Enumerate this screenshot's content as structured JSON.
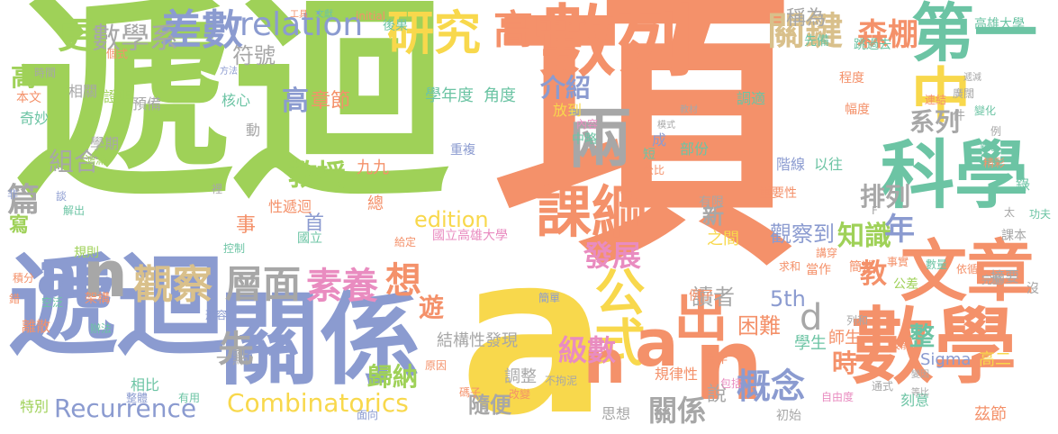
{
  "palette": {
    "orange": "#f4916a",
    "green": "#9fd158",
    "yellow": "#f8d84c",
    "blue": "#8b9bd0",
    "gray": "#a7a7a7",
    "teal": "#6cc4a4",
    "pink": "#e98cc0",
    "tan": "#d9c08b"
  },
  "words": {
    "xiang": "項",
    "dihui1": "遞迴",
    "dihui2": "遞迴",
    "a1": "a",
    "shuxue": "數學",
    "guanxi1": "關係",
    "shulie": "數列",
    "kexue": "科學",
    "wenzhang": "文章",
    "diyi": "第一",
    "liang": "兩",
    "kegang": "課綱",
    "zhong": "中",
    "yanjiu": "研究",
    "gaozhong": "高中",
    "chashu": "差數",
    "relation": "relation",
    "guanjian": "關鍵",
    "senpeng": "森棚",
    "chengwei": "稱為",
    "geng": "更",
    "shuxuexi": "數學系",
    "fuhao": "符號",
    "gongshi": "公式",
    "n1": "n",
    "n2": "n",
    "n3": "n",
    "a2": "a",
    "a3": "a",
    "chu": "出",
    "shijian": "事",
    "guancha": "觀察",
    "cengmian": "層面",
    "suyang": "素養",
    "xiang2": "想",
    "pailie": "排列",
    "zhishi": "知識",
    "xilie": "系列",
    "jiao": "教",
    "nian": "年",
    "xin": "新",
    "xian": "先",
    "gaoyi": "高一",
    "jieshao": "介紹",
    "jiaoshou": "教授",
    "zuhe": "組合",
    "pian": "篇",
    "xie": "寫",
    "shou": "首",
    "jiujiu": "九九",
    "gao": "高",
    "zhangjie": "章節",
    "yudu": "角度",
    "xuenian": "學年度",
    "fazhan": "發展",
    "guanchadao": "觀察到",
    "jieshu": "級數",
    "gainian": "概念",
    "guinan": "歸納",
    "suibian": "隨便",
    "combinatorics": "Combinatorics",
    "recurrence": "Recurrence",
    "edition": "edition",
    "guoligaoxiong": "國立高雄大學",
    "youxiang": "遊",
    "duzhe": "讀者",
    "fifth": "5th",
    "kunnan": "困難",
    "d1": "d",
    "shi": "時",
    "shuo": "說",
    "guanxi2": "關係",
    "jiegou": "結構性發現",
    "tiaozheng": "調整",
    "xuesheng": "學生",
    "shisheng": "師生",
    "zheng": "整",
    "sigma": "Sigma",
    "gaoer": "高二",
    "yidian": "一點",
    "xiangbi": "相比",
    "teibie": "特別",
    "zhengti": "整體",
    "youyong": "有用",
    "mianxiang": "面向",
    "sixiang": "思想",
    "chushi": "初始",
    "zidan": "自由度",
    "kedi": "刻意",
    "zijie": "茲節",
    "gaoxiongdaxue": "高雄大學",
    "xianbei": "先備",
    "tiaoguoqu": "跳過去",
    "zhishiyishi": "系列",
    "chengdu": "程度",
    "guanggao": "廣闊",
    "fudu": "幅度",
    "tiaoshi": "調適",
    "jieduan": "階線",
    "yiwang": "以往",
    "zhongyaoxing": "重要性",
    "zhijian": "之間",
    "youxian": "有限",
    "bufen": "部份",
    "dangzuo": "當作",
    "jianshu": "簡述",
    "zhaiyao": "摘要",
    "gongcha": "公差",
    "jiangchuan": "講穿",
    "qiuhe": "求和",
    "liehe": "列和",
    "xinqing": "新",
    "guilvxing": "規律性",
    "baokuo": "包括",
    "caozuo": "操作",
    "gaibian": "改變",
    "buju": "不拘泥",
    "yuanyin": "原因",
    "xingrong": "形容",
    "fangdao": "放到",
    "yubei": "預備",
    "hexin": "核心",
    "zhengming": "證明",
    "xiangguan": "相關",
    "benwen": "本文",
    "qimiao": "奇妙",
    "xueqi": "學期",
    "lisan": "離散",
    "jiagou": "架構",
    "guize": "規則",
    "kongzhi": "控制",
    "xingdihui": "性遞迴",
    "chongfu": "重複",
    "neirong": "內容",
    "zhonglue": "中略",
    "duan": "短",
    "cheng": "成",
    "dong": "動",
    "ke2": "課本",
    "lu": "錄",
    "ta": "太",
    "shi2": "時間",
    "gongju": "工具",
    "wenxian": "文獻",
    "initial": "initial",
    "houguo": "後果",
    "geshi": "個式",
    "fangfa": "方法",
    "bianli": "便利",
    "jiben": "基本",
    "lizi": "例子",
    "wanzheng": "完整",
    "shuliang": "數量",
    "jianshi": "簡單",
    "geiding": "給定",
    "mazi": "碼子",
    "banfa": "辦法",
    "kongzhi2": "空泛",
    "cuo": "錯",
    "ji": "積分",
    "feng": "鋪",
    "gongfu": "功夫",
    "chengdu2": "程度",
    "shuli": "樹立",
    "fei": "非",
    "tan": "談",
    "jiechu": "解出",
    "liao": "了",
    "shuohua": "說",
    "feisan": "非",
    "li": "裡",
    "zong": "總",
    "guoli": "國立",
    "hongman": "鴻滿",
    "fei2": "F",
    "rongxing": "融合",
    "meiyou": "沒",
    "jiuxiang": "價",
    "wanli": "萬",
    "ziyou": "自由",
    "gu": "故",
    "lianjie": "連結",
    "dijiao": "遞減",
    "li2": "例",
    "jingcai": "精彩",
    "shijian2": "事實",
    "yiju": "依循",
    "bianhua": "變化",
    "shushuo": "熟悉",
    "bianyin": "變因",
    "tongshi": "通式",
    "canbi": "等比",
    "jishu": "技能",
    "gongshu": "公比",
    "xiangxi": "詳",
    "jiao2": "教材",
    "moshi": "模式",
    "jijian": "件",
    "dengbi": "等比"
  }
}
